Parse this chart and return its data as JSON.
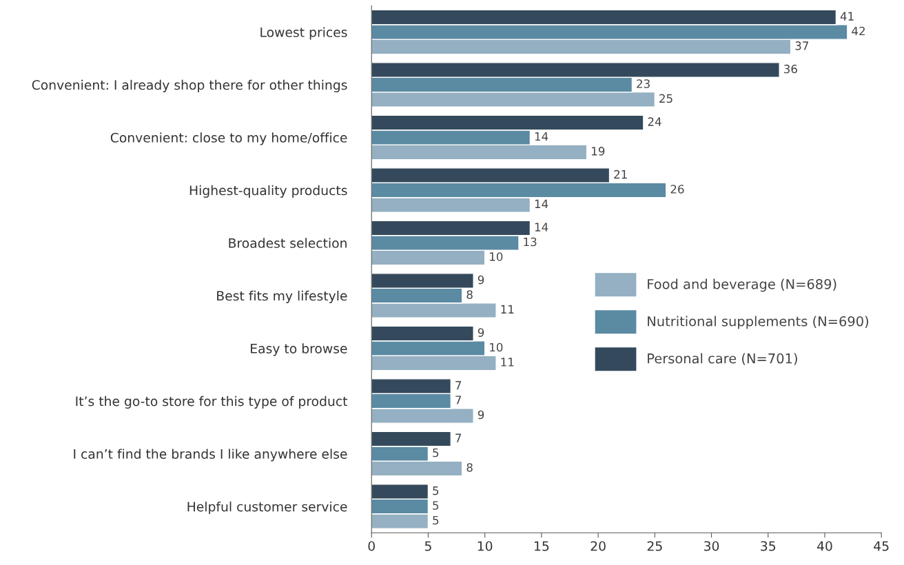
{
  "chart_data": {
    "type": "bar",
    "orientation": "horizontal",
    "categories": [
      "Lowest prices",
      "Convenient: I already shop there for other things",
      "Convenient: close to my home/office",
      "Highest-quality products",
      "Broadest selection",
      "Best fits my lifestyle",
      "Easy to browse",
      "It’s the go-to store for this type of product",
      "I can’t find the brands I like anywhere else",
      "Helpful customer service"
    ],
    "series": [
      {
        "name": "Food and beverage (N=689)",
        "color": "#94b0c2",
        "values": [
          37,
          25,
          19,
          14,
          10,
          11,
          11,
          9,
          8,
          5
        ]
      },
      {
        "name": "Nutritional supplements (N=690)",
        "color": "#5b8aa3",
        "values": [
          42,
          23,
          14,
          26,
          13,
          8,
          10,
          7,
          5,
          5
        ]
      },
      {
        "name": "Personal care (N=701)",
        "color": "#344a5c",
        "values": [
          41,
          36,
          24,
          21,
          14,
          9,
          9,
          7,
          7,
          5
        ]
      }
    ],
    "xlim": [
      0,
      45
    ],
    "xticks": [
      0,
      5,
      10,
      15,
      20,
      25,
      30,
      35,
      40,
      45
    ],
    "data_labels": true,
    "legend": "right",
    "grid": false
  }
}
